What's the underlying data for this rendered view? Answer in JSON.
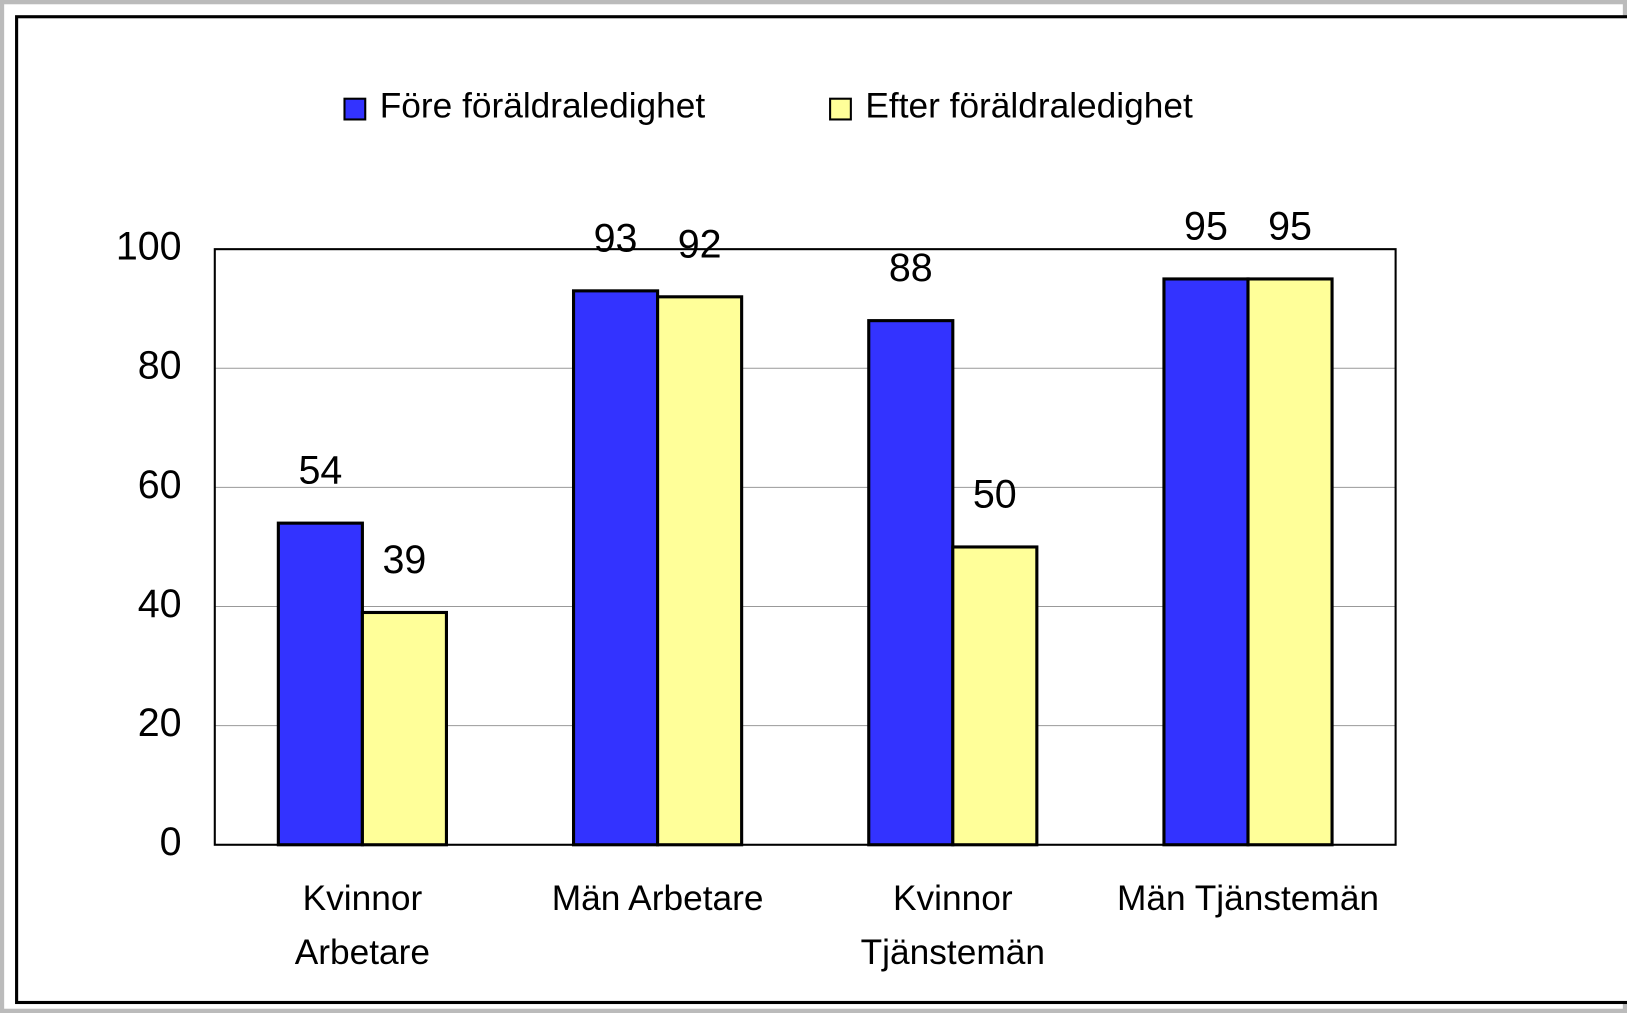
{
  "chart_data": {
    "type": "bar",
    "categories": [
      "Kvinnor\nArbetare",
      "Män Arbetare",
      "Kvinnor\nTjänstemän",
      "Män Tjänstemän"
    ],
    "series": [
      {
        "name": "Före föräldraledighet",
        "color": "#3333ff",
        "values": [
          54,
          93,
          88,
          95
        ]
      },
      {
        "name": "Efter föräldraledighet",
        "color": "#ffff99",
        "values": [
          39,
          92,
          50,
          95
        ]
      }
    ],
    "ylim": [
      0,
      100
    ],
    "yticks": [
      0,
      20,
      40,
      60,
      80,
      100
    ],
    "grid": true,
    "legend": "top"
  }
}
